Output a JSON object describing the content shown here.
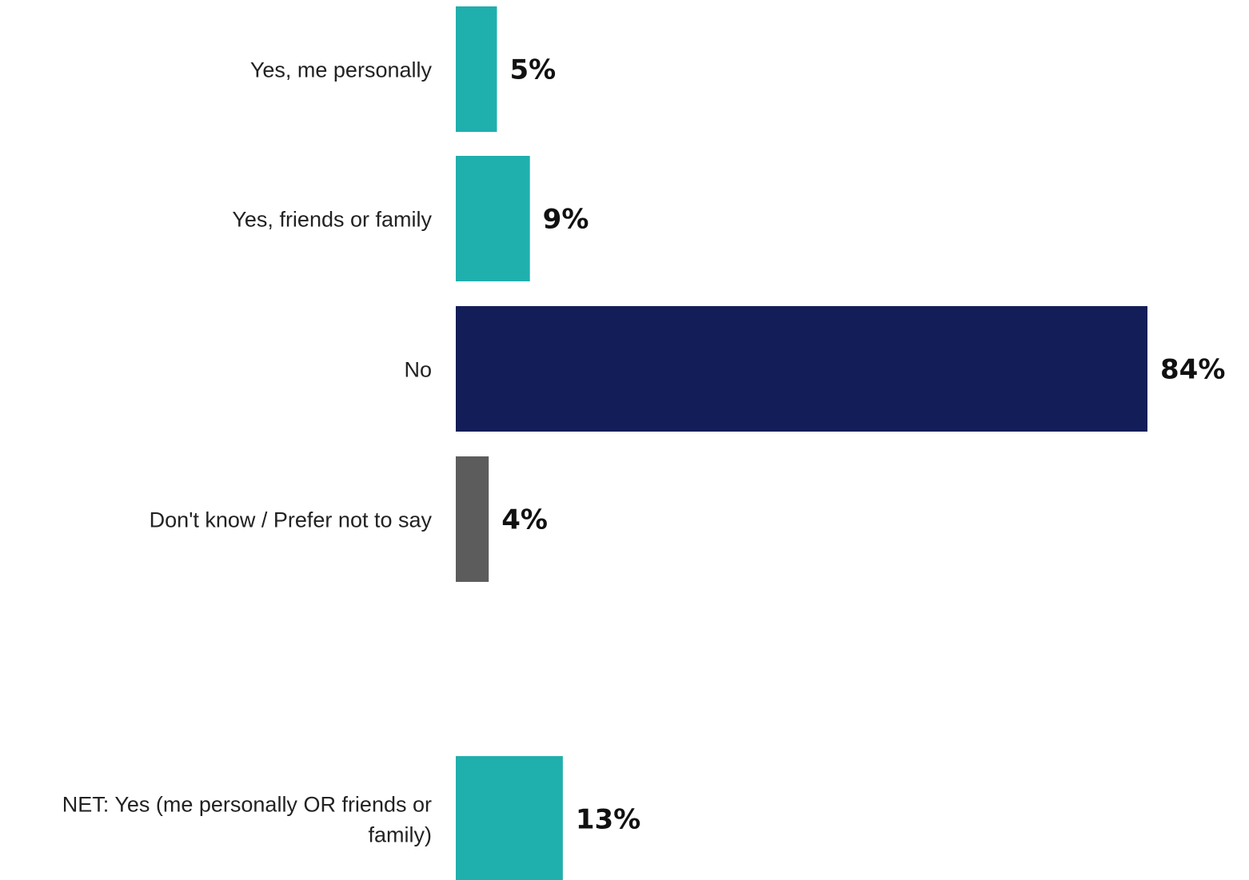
{
  "chart_data": {
    "type": "bar",
    "orientation": "horizontal",
    "categories": [
      "Yes, me personally",
      "Yes, friends or family",
      "No",
      "Don't know / Prefer not to say",
      "NET: Yes (me personally OR friends or family)"
    ],
    "values": [
      5,
      9,
      84,
      4,
      13
    ],
    "value_labels": [
      "5%",
      "9%",
      "84%",
      "4%",
      "13%"
    ],
    "bar_colors": [
      "#1fafad",
      "#1fafad",
      "#131d58",
      "#5c5c5c",
      "#1fafad"
    ],
    "xlim": [
      0,
      84
    ],
    "grid": false,
    "legend": "none",
    "title": "",
    "xlabel": "",
    "ylabel": ""
  }
}
